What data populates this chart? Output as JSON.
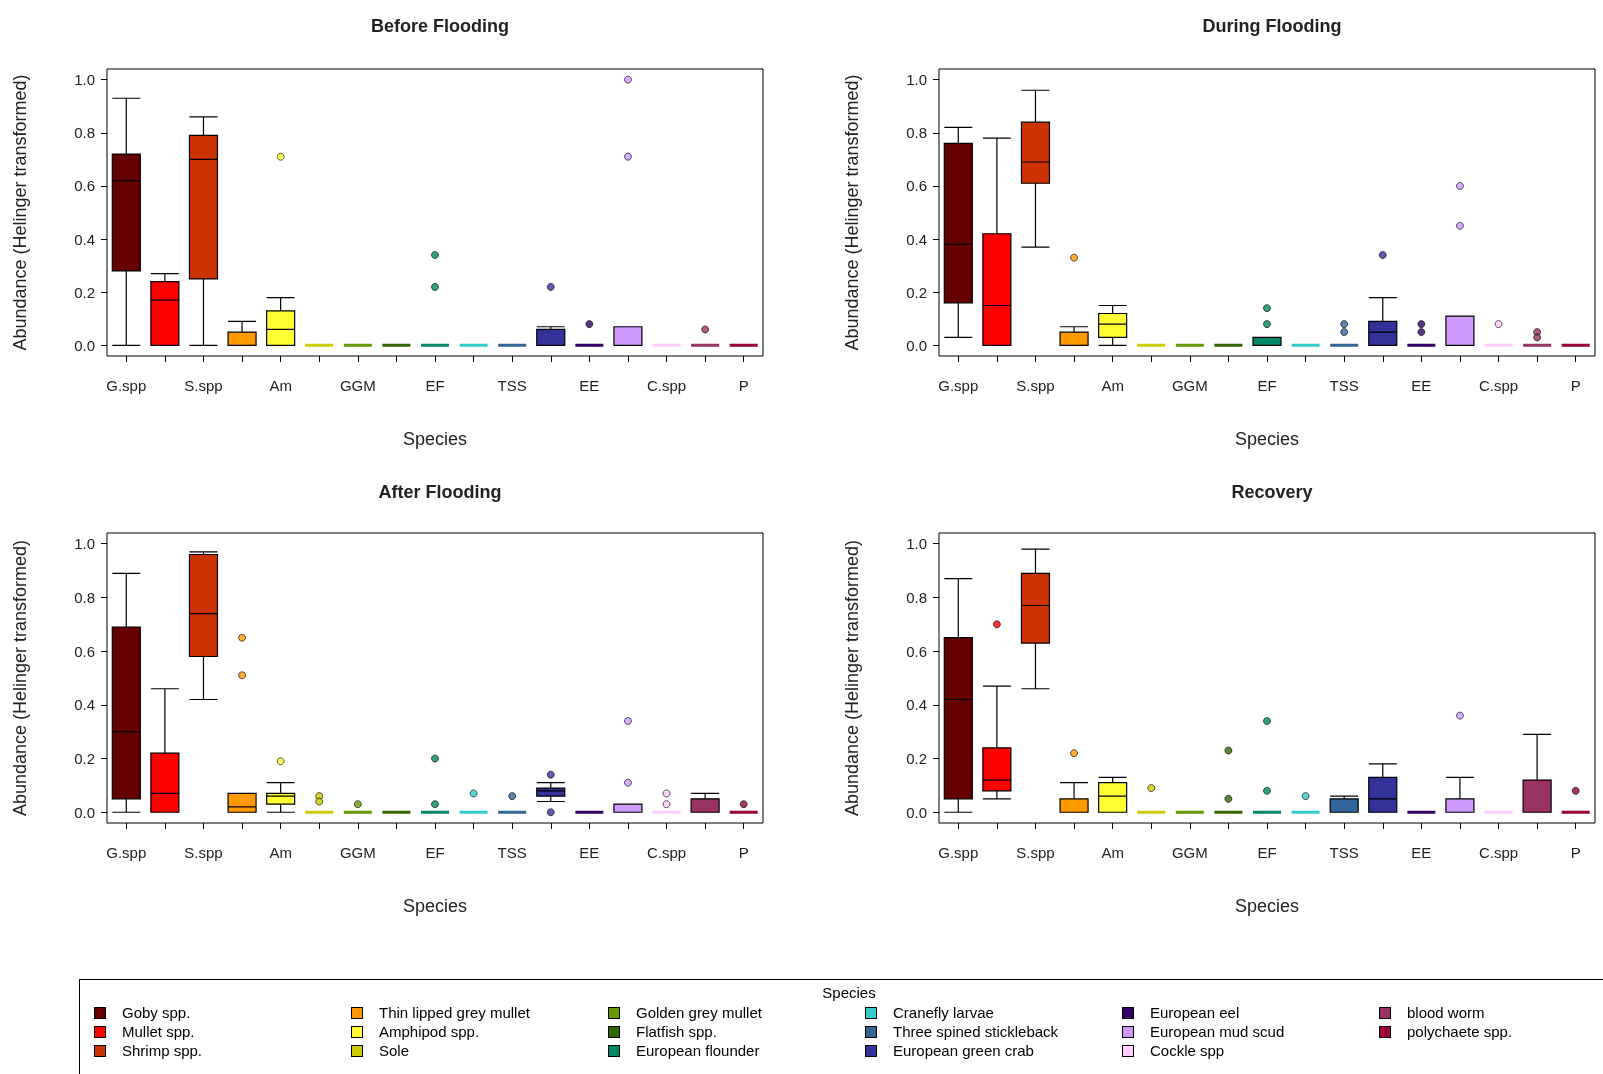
{
  "chart_data": [
    {
      "type": "box",
      "title": "Before Flooding",
      "xlabel": "Species",
      "ylabel": "Abundance (Helinger transformed)",
      "legend": "bottom",
      "legend_title": "Species",
      "categories": [
        "G.spp",
        null,
        "S.spp",
        null,
        "Am",
        null,
        "GGM",
        null,
        "EF",
        null,
        "TSS",
        null,
        "EE",
        null,
        "C.spp",
        null,
        "P"
      ],
      "ylim": [
        -0.04,
        1.04
      ],
      "yticks": [
        {
          "value": 0,
          "label": "0.0"
        },
        {
          "value": 0.2,
          "label": "0.2"
        },
        {
          "value": 0.4,
          "label": "0.4"
        },
        {
          "value": 0.6,
          "label": "0.6"
        },
        {
          "value": 0.8,
          "label": "0.8"
        },
        {
          "value": 1,
          "label": "1.0"
        }
      ],
      "series": [
        {
          "name": "Goby spp.",
          "color": "#660000",
          "boxes": [
            {
              "low": 0,
              "q1": 0.28,
              "median": 0.62,
              "q3": 0.72,
              "high": 0.93
            },
            null,
            null,
            null,
            null,
            null,
            null,
            null,
            null,
            null,
            null,
            null,
            null,
            null,
            null,
            null,
            null
          ]
        },
        {
          "name": "Mullet spp.",
          "color": "#ff0000",
          "boxes": [
            null,
            {
              "low": 0,
              "q1": 0,
              "median": 0.17,
              "q3": 0.24,
              "high": 0.27
            },
            null,
            null,
            null,
            null,
            null,
            null,
            null,
            null,
            null,
            null,
            null,
            null,
            null,
            null,
            null
          ]
        },
        {
          "name": "Shrimp spp.",
          "color": "#cc3300",
          "boxes": [
            null,
            null,
            {
              "low": 0,
              "q1": 0.25,
              "median": 0.7,
              "q3": 0.79,
              "high": 0.86
            },
            null,
            null,
            null,
            null,
            null,
            null,
            null,
            null,
            null,
            null,
            null,
            null,
            null,
            null
          ]
        },
        {
          "name": "Thin lipped grey mullet",
          "color": "#ff9900",
          "boxes": [
            null,
            null,
            null,
            {
              "low": 0,
              "q1": 0,
              "median": 0,
              "q3": 0.05,
              "high": 0.09
            },
            null,
            null,
            null,
            null,
            null,
            null,
            null,
            null,
            null,
            null,
            null,
            null,
            null
          ]
        },
        {
          "name": "Amphipod spp.",
          "color": "#ffff33",
          "boxes": [
            null,
            null,
            null,
            null,
            {
              "low": 0,
              "q1": 0,
              "median": 0.06,
              "q3": 0.13,
              "high": 0.18,
              "outliers": [
                0.71
              ]
            },
            null,
            null,
            null,
            null,
            null,
            null,
            null,
            null,
            null,
            null,
            null,
            null
          ]
        },
        {
          "name": "Sole",
          "color": "#cccc00",
          "boxes": [
            null,
            null,
            null,
            null,
            null,
            {
              "low": 0,
              "q1": 0,
              "median": 0,
              "q3": 0,
              "high": 0
            },
            null,
            null,
            null,
            null,
            null,
            null,
            null,
            null,
            null,
            null,
            null
          ]
        },
        {
          "name": "Golden grey mullet",
          "color": "#669900",
          "boxes": [
            null,
            null,
            null,
            null,
            null,
            null,
            {
              "low": 0,
              "q1": 0,
              "median": 0,
              "q3": 0,
              "high": 0
            },
            null,
            null,
            null,
            null,
            null,
            null,
            null,
            null,
            null,
            null
          ]
        },
        {
          "name": "Flatfish spp.",
          "color": "#336600",
          "boxes": [
            null,
            null,
            null,
            null,
            null,
            null,
            null,
            {
              "low": 0,
              "q1": 0,
              "median": 0,
              "q3": 0,
              "high": 0
            },
            null,
            null,
            null,
            null,
            null,
            null,
            null,
            null,
            null
          ]
        },
        {
          "name": "European flounder",
          "color": "#008866",
          "boxes": [
            null,
            null,
            null,
            null,
            null,
            null,
            null,
            null,
            {
              "low": 0,
              "q1": 0,
              "median": 0,
              "q3": 0,
              "high": 0,
              "outliers": [
                0.34,
                0.22
              ]
            },
            null,
            null,
            null,
            null,
            null,
            null,
            null,
            null
          ]
        },
        {
          "name": "Cranefly larvae",
          "color": "#33cccc",
          "boxes": [
            null,
            null,
            null,
            null,
            null,
            null,
            null,
            null,
            null,
            {
              "low": 0,
              "q1": 0,
              "median": 0,
              "q3": 0,
              "high": 0
            },
            null,
            null,
            null,
            null,
            null,
            null,
            null
          ]
        },
        {
          "name": "Three spined stickleback",
          "color": "#336699",
          "boxes": [
            null,
            null,
            null,
            null,
            null,
            null,
            null,
            null,
            null,
            null,
            {
              "low": 0,
              "q1": 0,
              "median": 0,
              "q3": 0,
              "high": 0
            },
            null,
            null,
            null,
            null,
            null,
            null
          ]
        },
        {
          "name": "European green crab",
          "color": "#333399",
          "boxes": [
            null,
            null,
            null,
            null,
            null,
            null,
            null,
            null,
            null,
            null,
            null,
            {
              "low": 0,
              "q1": 0,
              "median": 0,
              "q3": 0.06,
              "high": 0.07,
              "outliers": [
                0.22
              ]
            },
            null,
            null,
            null,
            null,
            null
          ]
        },
        {
          "name": "European eel",
          "color": "#330066",
          "boxes": [
            null,
            null,
            null,
            null,
            null,
            null,
            null,
            null,
            null,
            null,
            null,
            null,
            {
              "low": 0,
              "q1": 0,
              "median": 0,
              "q3": 0,
              "high": 0,
              "outliers": [
                0.08
              ]
            },
            null,
            null,
            null,
            null
          ]
        },
        {
          "name": "European mud scud",
          "color": "#cc99ff",
          "boxes": [
            null,
            null,
            null,
            null,
            null,
            null,
            null,
            null,
            null,
            null,
            null,
            null,
            null,
            {
              "low": 0,
              "q1": 0,
              "median": 0,
              "q3": 0.07,
              "high": 0.07,
              "outliers": [
                1.0,
                0.71
              ]
            },
            null,
            null,
            null
          ]
        },
        {
          "name": "Cockle spp",
          "color": "#ffccff",
          "boxes": [
            null,
            null,
            null,
            null,
            null,
            null,
            null,
            null,
            null,
            null,
            null,
            null,
            null,
            null,
            {
              "low": 0,
              "q1": 0,
              "median": 0,
              "q3": 0,
              "high": 0
            },
            null,
            null
          ]
        },
        {
          "name": "blood worm",
          "color": "#993366",
          "boxes": [
            null,
            null,
            null,
            null,
            null,
            null,
            null,
            null,
            null,
            null,
            null,
            null,
            null,
            null,
            null,
            {
              "low": 0,
              "q1": 0,
              "median": 0,
              "q3": 0,
              "high": 0,
              "outliers": [
                0.06
              ]
            },
            null
          ]
        },
        {
          "name": "polychaete spp.",
          "color": "#990033",
          "boxes": [
            null,
            null,
            null,
            null,
            null,
            null,
            null,
            null,
            null,
            null,
            null,
            null,
            null,
            null,
            null,
            null,
            {
              "low": 0,
              "q1": 0,
              "median": 0,
              "q3": 0,
              "high": 0
            }
          ]
        }
      ]
    },
    {
      "type": "box",
      "title": "During Flooding",
      "xlabel": "Species",
      "ylabel": "Abundance (Helinger transformed)",
      "categories": [
        "G.spp",
        null,
        "S.spp",
        null,
        "Am",
        null,
        "GGM",
        null,
        "EF",
        null,
        "TSS",
        null,
        "EE",
        null,
        "C.spp",
        null,
        "P"
      ],
      "ylim": [
        -0.04,
        1.04
      ],
      "yticks": [
        {
          "value": 0,
          "label": "0.0"
        },
        {
          "value": 0.2,
          "label": "0.2"
        },
        {
          "value": 0.4,
          "label": "0.4"
        },
        {
          "value": 0.6,
          "label": "0.6"
        },
        {
          "value": 0.8,
          "label": "0.8"
        },
        {
          "value": 1,
          "label": "1.0"
        }
      ],
      "colors": [
        "#660000",
        "#ff0000",
        "#cc3300",
        "#ff9900",
        "#ffff33",
        "#cccc00",
        "#669900",
        "#336600",
        "#008866",
        "#33cccc",
        "#336699",
        "#333399",
        "#330066",
        "#cc99ff",
        "#ffccff",
        "#993366",
        "#990033"
      ],
      "boxes": [
        {
          "low": 0.03,
          "q1": 0.16,
          "median": 0.38,
          "q3": 0.76,
          "high": 0.82
        },
        {
          "low": 0,
          "q1": 0,
          "median": 0.15,
          "q3": 0.42,
          "high": 0.78
        },
        {
          "low": 0.37,
          "q1": 0.61,
          "median": 0.69,
          "q3": 0.84,
          "high": 0.96
        },
        {
          "low": 0,
          "q1": 0,
          "median": 0,
          "q3": 0.05,
          "high": 0.07,
          "outliers": [
            0.33
          ]
        },
        {
          "low": 0,
          "q1": 0.03,
          "median": 0.08,
          "q3": 0.12,
          "high": 0.15
        },
        {
          "low": 0,
          "q1": 0,
          "median": 0,
          "q3": 0,
          "high": 0
        },
        {
          "low": 0,
          "q1": 0,
          "median": 0,
          "q3": 0,
          "high": 0
        },
        {
          "low": 0,
          "q1": 0,
          "median": 0,
          "q3": 0,
          "high": 0
        },
        {
          "low": 0,
          "q1": 0,
          "median": 0,
          "q3": 0.03,
          "high": 0.03,
          "outliers": [
            0.14,
            0.08
          ]
        },
        {
          "low": 0,
          "q1": 0,
          "median": 0,
          "q3": 0,
          "high": 0
        },
        {
          "low": 0,
          "q1": 0,
          "median": 0,
          "q3": 0,
          "high": 0,
          "outliers": [
            0.08,
            0.05
          ]
        },
        {
          "low": 0,
          "q1": 0,
          "median": 0.05,
          "q3": 0.09,
          "high": 0.18,
          "outliers": [
            0.34
          ]
        },
        {
          "low": 0,
          "q1": 0,
          "median": 0,
          "q3": 0,
          "high": 0,
          "outliers": [
            0.08,
            0.05
          ]
        },
        {
          "low": 0,
          "q1": 0,
          "median": 0,
          "q3": 0.11,
          "high": 0.11,
          "outliers": [
            0.6,
            0.45
          ]
        },
        {
          "low": 0,
          "q1": 0,
          "median": 0,
          "q3": 0,
          "high": 0,
          "outliers": [
            0.08
          ]
        },
        {
          "low": 0,
          "q1": 0,
          "median": 0,
          "q3": 0,
          "high": 0,
          "outliers": [
            0.05,
            0.03
          ]
        },
        {
          "low": 0,
          "q1": 0,
          "median": 0,
          "q3": 0,
          "high": 0
        }
      ]
    },
    {
      "type": "box",
      "title": "After Flooding",
      "xlabel": "Species",
      "ylabel": "Abundance (Helinger transformed)",
      "categories": [
        "G.spp",
        null,
        "S.spp",
        null,
        "Am",
        null,
        "GGM",
        null,
        "EF",
        null,
        "TSS",
        null,
        "EE",
        null,
        "C.spp",
        null,
        "P"
      ],
      "ylim": [
        -0.04,
        1.04
      ],
      "yticks": [
        {
          "value": 0,
          "label": "0.0"
        },
        {
          "value": 0.2,
          "label": "0.2"
        },
        {
          "value": 0.4,
          "label": "0.4"
        },
        {
          "value": 0.6,
          "label": "0.6"
        },
        {
          "value": 0.8,
          "label": "0.8"
        },
        {
          "value": 1,
          "label": "1.0"
        }
      ],
      "colors": [
        "#660000",
        "#ff0000",
        "#cc3300",
        "#ff9900",
        "#ffff33",
        "#cccc00",
        "#669900",
        "#336600",
        "#008866",
        "#33cccc",
        "#336699",
        "#333399",
        "#330066",
        "#cc99ff",
        "#ffccff",
        "#993366",
        "#990033"
      ],
      "boxes": [
        {
          "low": 0,
          "q1": 0.05,
          "median": 0.3,
          "q3": 0.69,
          "high": 0.89
        },
        {
          "low": 0,
          "q1": 0,
          "median": 0.07,
          "q3": 0.22,
          "high": 0.46
        },
        {
          "low": 0.42,
          "q1": 0.58,
          "median": 0.74,
          "q3": 0.96,
          "high": 0.97
        },
        {
          "low": 0,
          "q1": 0,
          "median": 0.02,
          "q3": 0.07,
          "high": 0.07,
          "outliers": [
            0.65,
            0.51
          ]
        },
        {
          "low": 0,
          "q1": 0.03,
          "median": 0.06,
          "q3": 0.07,
          "high": 0.11,
          "outliers": [
            0.19
          ]
        },
        {
          "low": 0,
          "q1": 0,
          "median": 0,
          "q3": 0,
          "high": 0,
          "outliers": [
            0.06,
            0.04
          ]
        },
        {
          "low": 0,
          "q1": 0,
          "median": 0,
          "q3": 0,
          "high": 0,
          "outliers": [
            0.03
          ]
        },
        {
          "low": 0,
          "q1": 0,
          "median": 0,
          "q3": 0,
          "high": 0
        },
        {
          "low": 0,
          "q1": 0,
          "median": 0,
          "q3": 0,
          "high": 0,
          "outliers": [
            0.2,
            0.03
          ]
        },
        {
          "low": 0,
          "q1": 0,
          "median": 0,
          "q3": 0,
          "high": 0,
          "outliers": [
            0.07
          ]
        },
        {
          "low": 0,
          "q1": 0,
          "median": 0,
          "q3": 0,
          "high": 0,
          "outliers": [
            0.06
          ]
        },
        {
          "low": 0.04,
          "q1": 0.06,
          "median": 0.08,
          "q3": 0.09,
          "high": 0.11,
          "outliers": [
            0.14,
            0
          ]
        },
        {
          "low": 0,
          "q1": 0,
          "median": 0,
          "q3": 0,
          "high": 0
        },
        {
          "low": 0,
          "q1": 0,
          "median": 0,
          "q3": 0.03,
          "high": 0.03,
          "outliers": [
            0.34,
            0.11
          ]
        },
        {
          "low": 0,
          "q1": 0,
          "median": 0,
          "q3": 0,
          "high": 0,
          "outliers": [
            0.07,
            0.03
          ]
        },
        {
          "low": 0,
          "q1": 0,
          "median": 0,
          "q3": 0.05,
          "high": 0.07
        },
        {
          "low": 0,
          "q1": 0,
          "median": 0,
          "q3": 0,
          "high": 0,
          "outliers": [
            0.03
          ]
        }
      ]
    },
    {
      "type": "box",
      "title": "Recovery",
      "xlabel": "Species",
      "ylabel": "Abundance (Helinger transformed)",
      "categories": [
        "G.spp",
        null,
        "S.spp",
        null,
        "Am",
        null,
        "GGM",
        null,
        "EF",
        null,
        "TSS",
        null,
        "EE",
        null,
        "C.spp",
        null,
        "P"
      ],
      "ylim": [
        -0.04,
        1.04
      ],
      "yticks": [
        {
          "value": 0,
          "label": "0.0"
        },
        {
          "value": 0.2,
          "label": "0.2"
        },
        {
          "value": 0.4,
          "label": "0.4"
        },
        {
          "value": 0.6,
          "label": "0.6"
        },
        {
          "value": 0.8,
          "label": "0.8"
        },
        {
          "value": 1,
          "label": "1.0"
        }
      ],
      "colors": [
        "#660000",
        "#ff0000",
        "#cc3300",
        "#ff9900",
        "#ffff33",
        "#cccc00",
        "#669900",
        "#336600",
        "#008866",
        "#33cccc",
        "#336699",
        "#333399",
        "#330066",
        "#cc99ff",
        "#ffccff",
        "#993366",
        "#990033"
      ],
      "boxes": [
        {
          "low": 0,
          "q1": 0.05,
          "median": 0.42,
          "q3": 0.65,
          "high": 0.87
        },
        {
          "low": 0.05,
          "q1": 0.08,
          "median": 0.12,
          "q3": 0.24,
          "high": 0.47,
          "outliers": [
            0.7
          ]
        },
        {
          "low": 0.46,
          "q1": 0.63,
          "median": 0.77,
          "q3": 0.89,
          "high": 0.98
        },
        {
          "low": 0,
          "q1": 0,
          "median": 0,
          "q3": 0.05,
          "high": 0.11,
          "outliers": [
            0.22
          ]
        },
        {
          "low": 0,
          "q1": 0,
          "median": 0.06,
          "q3": 0.11,
          "high": 0.13
        },
        {
          "low": 0,
          "q1": 0,
          "median": 0,
          "q3": 0,
          "high": 0,
          "outliers": [
            0.09
          ]
        },
        {
          "low": 0,
          "q1": 0,
          "median": 0,
          "q3": 0,
          "high": 0
        },
        {
          "low": 0,
          "q1": 0,
          "median": 0,
          "q3": 0,
          "high": 0,
          "outliers": [
            0.23,
            0.05
          ]
        },
        {
          "low": 0,
          "q1": 0,
          "median": 0,
          "q3": 0,
          "high": 0,
          "outliers": [
            0.34,
            0.08
          ]
        },
        {
          "low": 0,
          "q1": 0,
          "median": 0,
          "q3": 0,
          "high": 0,
          "outliers": [
            0.06
          ]
        },
        {
          "low": 0,
          "q1": 0,
          "median": 0,
          "q3": 0.05,
          "high": 0.06
        },
        {
          "low": 0,
          "q1": 0,
          "median": 0.05,
          "q3": 0.13,
          "high": 0.18
        },
        {
          "low": 0,
          "q1": 0,
          "median": 0,
          "q3": 0,
          "high": 0
        },
        {
          "low": 0,
          "q1": 0,
          "median": 0,
          "q3": 0.05,
          "high": 0.13,
          "outliers": [
            0.36
          ]
        },
        {
          "low": 0,
          "q1": 0,
          "median": 0,
          "q3": 0,
          "high": 0
        },
        {
          "low": 0,
          "q1": 0,
          "median": 0,
          "q3": 0.12,
          "high": 0.29
        },
        {
          "low": 0,
          "q1": 0,
          "median": 0,
          "q3": 0,
          "high": 0,
          "outliers": [
            0.08
          ]
        }
      ]
    }
  ]
}
